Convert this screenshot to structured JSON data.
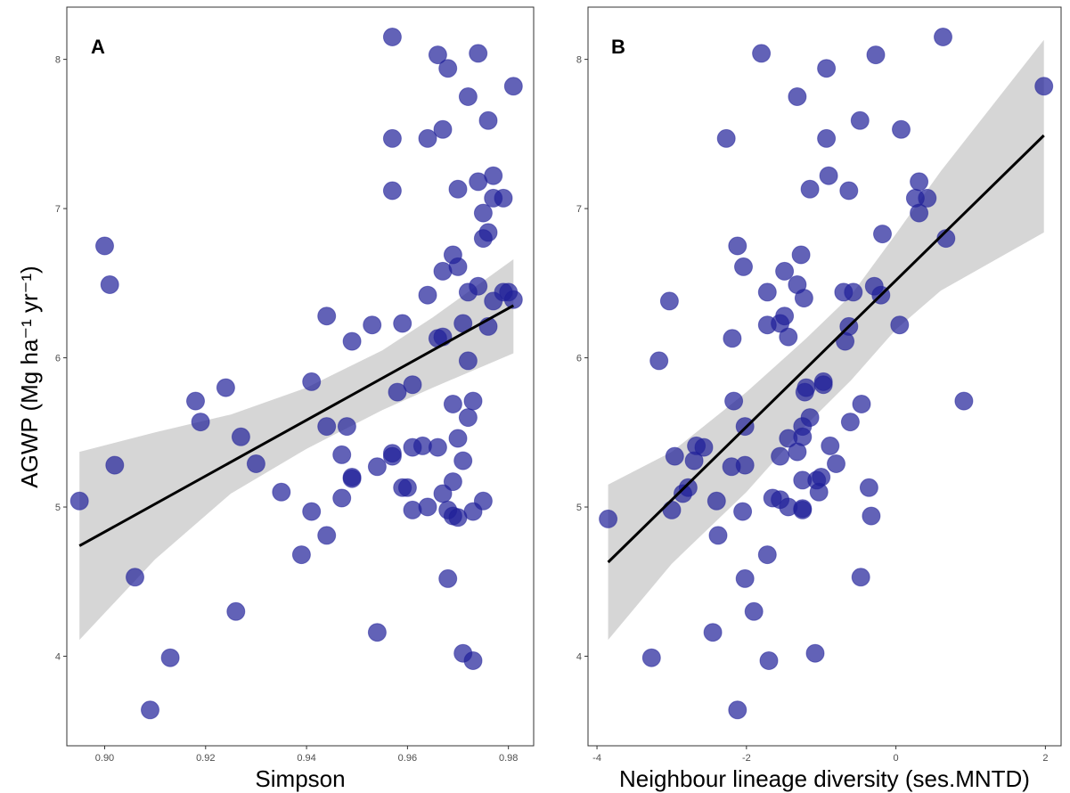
{
  "ylabel": "AGWP (Mg ha⁻¹ yr⁻¹)",
  "point_color": "#1f1f99",
  "band_color": "#d6d6d6",
  "chart_data": [
    {
      "type": "scatter",
      "panel_label": "A",
      "xlabel": "Simpson",
      "xlim": [
        0.8925,
        0.985
      ],
      "ylim": [
        3.4,
        8.35
      ],
      "xticks": [
        0.9,
        0.92,
        0.94,
        0.96,
        0.98
      ],
      "xtick_labels": [
        "0.90",
        "0.92",
        "0.94",
        "0.96",
        "0.98"
      ],
      "yticks": [
        4,
        5,
        6,
        7,
        8
      ],
      "ytick_labels": [
        "4",
        "5",
        "6",
        "7",
        "8"
      ],
      "fit": {
        "x": [
          0.895,
          0.981
        ],
        "y": [
          4.74,
          6.35
        ]
      },
      "ci_band": {
        "x": [
          0.895,
          0.91,
          0.925,
          0.94,
          0.955,
          0.965,
          0.981
        ],
        "lower": [
          4.11,
          4.65,
          5.09,
          5.39,
          5.65,
          5.8,
          6.03
        ],
        "upper": [
          5.37,
          5.5,
          5.62,
          5.8,
          6.05,
          6.27,
          6.66
        ]
      },
      "points": [
        [
          0.957,
          8.15
        ],
        [
          0.966,
          8.03
        ],
        [
          0.974,
          8.04
        ],
        [
          0.968,
          7.94
        ],
        [
          0.981,
          7.82
        ],
        [
          0.972,
          7.75
        ],
        [
          0.976,
          7.59
        ],
        [
          0.967,
          7.53
        ],
        [
          0.957,
          7.47
        ],
        [
          0.964,
          7.47
        ],
        [
          0.977,
          7.22
        ],
        [
          0.974,
          7.18
        ],
        [
          0.97,
          7.13
        ],
        [
          0.957,
          7.12
        ],
        [
          0.977,
          7.07
        ],
        [
          0.979,
          7.07
        ],
        [
          0.975,
          6.97
        ],
        [
          0.976,
          6.84
        ],
        [
          0.975,
          6.8
        ],
        [
          0.9,
          6.75
        ],
        [
          0.969,
          6.69
        ],
        [
          0.97,
          6.61
        ],
        [
          0.967,
          6.58
        ],
        [
          0.901,
          6.49
        ],
        [
          0.974,
          6.48
        ],
        [
          0.972,
          6.44
        ],
        [
          0.979,
          6.44
        ],
        [
          0.98,
          6.44
        ],
        [
          0.964,
          6.42
        ],
        [
          0.977,
          6.38
        ],
        [
          0.981,
          6.39
        ],
        [
          0.944,
          6.28
        ],
        [
          0.953,
          6.22
        ],
        [
          0.959,
          6.23
        ],
        [
          0.971,
          6.23
        ],
        [
          0.976,
          6.21
        ],
        [
          0.966,
          6.13
        ],
        [
          0.967,
          6.14
        ],
        [
          0.949,
          6.11
        ],
        [
          0.972,
          5.98
        ],
        [
          0.941,
          5.84
        ],
        [
          0.924,
          5.8
        ],
        [
          0.961,
          5.82
        ],
        [
          0.958,
          5.77
        ],
        [
          0.918,
          5.71
        ],
        [
          0.969,
          5.69
        ],
        [
          0.973,
          5.71
        ],
        [
          0.972,
          5.6
        ],
        [
          0.919,
          5.57
        ],
        [
          0.944,
          5.54
        ],
        [
          0.948,
          5.54
        ],
        [
          0.927,
          5.47
        ],
        [
          0.97,
          5.46
        ],
        [
          0.961,
          5.4
        ],
        [
          0.963,
          5.41
        ],
        [
          0.966,
          5.4
        ],
        [
          0.957,
          5.36
        ],
        [
          0.957,
          5.34
        ],
        [
          0.947,
          5.35
        ],
        [
          0.971,
          5.31
        ],
        [
          0.93,
          5.29
        ],
        [
          0.902,
          5.28
        ],
        [
          0.954,
          5.27
        ],
        [
          0.949,
          5.2
        ],
        [
          0.949,
          5.19
        ],
        [
          0.969,
          5.17
        ],
        [
          0.959,
          5.13
        ],
        [
          0.96,
          5.13
        ],
        [
          0.935,
          5.1
        ],
        [
          0.967,
          5.09
        ],
        [
          0.947,
          5.06
        ],
        [
          0.895,
          5.04
        ],
        [
          0.975,
          5.04
        ],
        [
          0.964,
          5.0
        ],
        [
          0.961,
          4.98
        ],
        [
          0.968,
          4.98
        ],
        [
          0.941,
          4.97
        ],
        [
          0.973,
          4.97
        ],
        [
          0.969,
          4.94
        ],
        [
          0.97,
          4.93
        ],
        [
          0.944,
          4.81
        ],
        [
          0.939,
          4.68
        ],
        [
          0.906,
          4.53
        ],
        [
          0.968,
          4.52
        ],
        [
          0.926,
          4.3
        ],
        [
          0.954,
          4.16
        ],
        [
          0.971,
          4.02
        ],
        [
          0.913,
          3.99
        ],
        [
          0.973,
          3.97
        ],
        [
          0.909,
          3.64
        ]
      ]
    },
    {
      "type": "scatter",
      "panel_label": "B",
      "xlabel": "Neighbour lineage diversity (ses.MNTD)",
      "xlim": [
        -4.12,
        2.21
      ],
      "ylim": [
        3.4,
        8.35
      ],
      "xticks": [
        -4,
        -2,
        0,
        2
      ],
      "xtick_labels": [
        "-4",
        "-2",
        "0",
        "2"
      ],
      "yticks": [
        4,
        5,
        6,
        7,
        8
      ],
      "ytick_labels": [
        "4",
        "5",
        "6",
        "7",
        "8"
      ],
      "fit": {
        "x": [
          -3.85,
          1.98
        ],
        "y": [
          4.63,
          7.49
        ]
      },
      "ci_band": {
        "x": [
          -3.85,
          -3.0,
          -2.0,
          -1.2,
          -0.6,
          0.0,
          0.6,
          1.98
        ],
        "lower": [
          4.11,
          4.62,
          5.1,
          5.55,
          5.85,
          6.19,
          6.45,
          6.84
        ],
        "upper": [
          5.15,
          5.37,
          5.77,
          6.13,
          6.42,
          6.83,
          7.25,
          8.13
        ]
      },
      "points": [
        [
          0.63,
          8.15
        ],
        [
          -1.8,
          8.04
        ],
        [
          -0.27,
          8.03
        ],
        [
          -0.93,
          7.94
        ],
        [
          1.98,
          7.82
        ],
        [
          -1.32,
          7.75
        ],
        [
          -0.48,
          7.59
        ],
        [
          0.07,
          7.53
        ],
        [
          -2.27,
          7.47
        ],
        [
          -0.93,
          7.47
        ],
        [
          -0.9,
          7.22
        ],
        [
          0.31,
          7.18
        ],
        [
          -1.15,
          7.13
        ],
        [
          -0.63,
          7.12
        ],
        [
          0.26,
          7.07
        ],
        [
          0.42,
          7.07
        ],
        [
          0.31,
          6.97
        ],
        [
          -0.18,
          6.83
        ],
        [
          0.67,
          6.8
        ],
        [
          -2.12,
          6.75
        ],
        [
          -1.27,
          6.69
        ],
        [
          -2.04,
          6.61
        ],
        [
          -1.49,
          6.58
        ],
        [
          -1.32,
          6.49
        ],
        [
          -0.29,
          6.48
        ],
        [
          -1.72,
          6.44
        ],
        [
          -0.7,
          6.44
        ],
        [
          -0.57,
          6.44
        ],
        [
          -0.2,
          6.42
        ],
        [
          -1.23,
          6.4
        ],
        [
          -3.03,
          6.38
        ],
        [
          -1.49,
          6.28
        ],
        [
          -1.72,
          6.22
        ],
        [
          -1.55,
          6.23
        ],
        [
          -0.63,
          6.21
        ],
        [
          0.05,
          6.22
        ],
        [
          -2.19,
          6.13
        ],
        [
          -1.44,
          6.14
        ],
        [
          -0.68,
          6.11
        ],
        [
          -3.17,
          5.98
        ],
        [
          -0.97,
          5.84
        ],
        [
          -0.97,
          5.82
        ],
        [
          -1.2,
          5.8
        ],
        [
          -1.22,
          5.77
        ],
        [
          -2.17,
          5.71
        ],
        [
          0.91,
          5.71
        ],
        [
          -0.46,
          5.69
        ],
        [
          -1.15,
          5.6
        ],
        [
          -0.61,
          5.57
        ],
        [
          -2.02,
          5.54
        ],
        [
          -1.25,
          5.54
        ],
        [
          -1.25,
          5.47
        ],
        [
          -1.44,
          5.46
        ],
        [
          -0.88,
          5.41
        ],
        [
          -2.67,
          5.41
        ],
        [
          -2.57,
          5.4
        ],
        [
          -2.96,
          5.34
        ],
        [
          -1.55,
          5.34
        ],
        [
          -1.32,
          5.37
        ],
        [
          -2.7,
          5.31
        ],
        [
          -0.8,
          5.29
        ],
        [
          -2.2,
          5.27
        ],
        [
          -2.02,
          5.28
        ],
        [
          -1.06,
          5.18
        ],
        [
          -1.0,
          5.2
        ],
        [
          -1.25,
          5.18
        ],
        [
          -2.85,
          5.09
        ],
        [
          -2.78,
          5.13
        ],
        [
          -1.03,
          5.1
        ],
        [
          -0.36,
          5.13
        ],
        [
          -1.65,
          5.06
        ],
        [
          -1.55,
          5.05
        ],
        [
          -2.4,
          5.04
        ],
        [
          -1.44,
          5.0
        ],
        [
          -1.25,
          4.99
        ],
        [
          -1.25,
          4.98
        ],
        [
          -3.0,
          4.98
        ],
        [
          -2.05,
          4.97
        ],
        [
          -0.33,
          4.94
        ],
        [
          -3.85,
          4.92
        ],
        [
          -2.38,
          4.81
        ],
        [
          -1.72,
          4.68
        ],
        [
          -0.47,
          4.53
        ],
        [
          -2.02,
          4.52
        ],
        [
          -1.9,
          4.3
        ],
        [
          -2.45,
          4.16
        ],
        [
          -1.08,
          4.02
        ],
        [
          -3.27,
          3.99
        ],
        [
          -1.7,
          3.97
        ],
        [
          -2.12,
          3.64
        ]
      ]
    }
  ]
}
